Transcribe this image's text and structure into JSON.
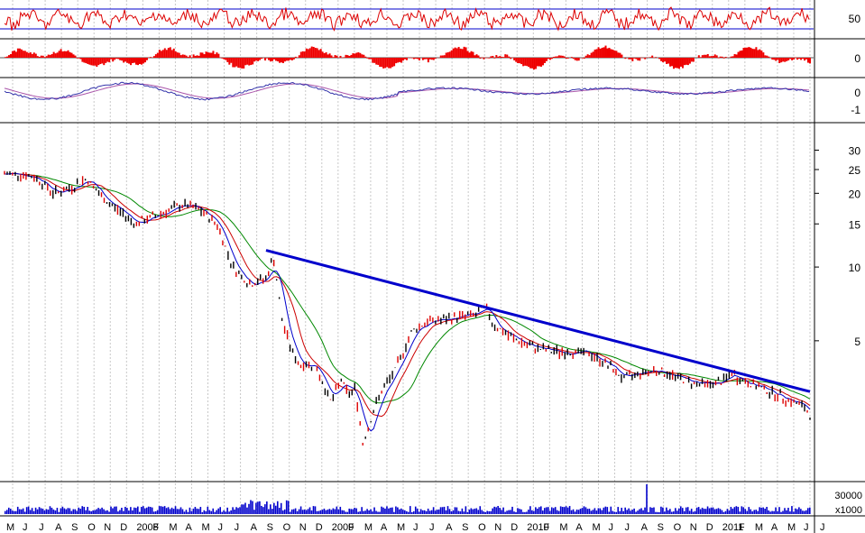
{
  "chart_data": [
    {
      "type": "line",
      "panel": "oscillator",
      "title": "",
      "yticks": [
        50
      ],
      "reference_levels": [
        70,
        30
      ],
      "ylim": [
        0,
        100
      ],
      "colors": {
        "line": "#dd0000",
        "reference": "#0000cc"
      }
    },
    {
      "type": "bar",
      "panel": "histogram",
      "title": "",
      "yticks": [
        0
      ],
      "colors": {
        "bars": "#ee0000"
      }
    },
    {
      "type": "line",
      "panel": "momentum",
      "title": "",
      "yticks": [
        0,
        -1
      ],
      "colors": {
        "line": "#3333aa",
        "signal": "#aa55aa"
      }
    },
    {
      "type": "line",
      "panel": "price",
      "title": "",
      "log_scale": true,
      "ylim": [
        1.4,
        36
      ],
      "yticks": [
        30,
        25,
        20,
        15,
        10,
        5
      ],
      "grid": "vertical dotted",
      "series": [
        {
          "name": "",
          "role": "price",
          "color": "#000000",
          "x": [
            "2007-05-01",
            "2007-06-01",
            "2007-07-01",
            "2007-08-01",
            "2007-09-01",
            "2007-10-01",
            "2007-11-01",
            "2007-12-01",
            "2008-01-01",
            "2008-02-01",
            "2008-03-01",
            "2008-04-01",
            "2008-05-01",
            "2008-06-01",
            "2008-07-01",
            "2008-08-01",
            "2008-09-01",
            "2008-09-15",
            "2008-10-01",
            "2008-10-20",
            "2008-11-01",
            "2008-12-01",
            "2009-01-01",
            "2009-01-20",
            "2009-02-01",
            "2009-02-15",
            "2009-03-01",
            "2009-03-10",
            "2009-04-01",
            "2009-05-01",
            "2009-06-01",
            "2009-07-01",
            "2009-08-01",
            "2009-09-01",
            "2009-10-01",
            "2009-10-15",
            "2009-11-01",
            "2009-12-01",
            "2010-01-01",
            "2010-02-01",
            "2010-03-01",
            "2010-04-01",
            "2010-05-01",
            "2010-06-01",
            "2010-07-01",
            "2010-08-01",
            "2010-09-01",
            "2010-10-01",
            "2010-11-01",
            "2010-12-01",
            "2011-01-01",
            "2011-01-20",
            "2011-02-01",
            "2011-03-01",
            "2011-04-01",
            "2011-05-01",
            "2011-06-01",
            "2011-06-15"
          ],
          "values": [
            24,
            24,
            23,
            20,
            21,
            23,
            19,
            17,
            15,
            16,
            17,
            18,
            17,
            15,
            10,
            8.5,
            9,
            11,
            6,
            4.5,
            4,
            4,
            2.8,
            3.5,
            3,
            3.2,
            1.9,
            2.2,
            3,
            3.8,
            5.5,
            6,
            6.1,
            6.3,
            6.4,
            6.9,
            5.8,
            5.2,
            4.8,
            4.6,
            4.5,
            4.5,
            4.4,
            4.0,
            3.5,
            3.7,
            3.8,
            3.6,
            3.4,
            3.3,
            3.4,
            3.7,
            3.5,
            3.3,
            3.1,
            2.9,
            2.7,
            2.5
          ]
        },
        {
          "name": "",
          "role": "moving-average-short",
          "color": "#0000cc"
        },
        {
          "name": "",
          "role": "moving-average-medium",
          "color": "#cc0000"
        },
        {
          "name": "",
          "role": "moving-average-long",
          "color": "#008800"
        },
        {
          "name": "",
          "role": "trendline",
          "color": "#0000cc",
          "x": [
            "2008-09-01",
            "2011-06-15"
          ],
          "values": [
            11.7,
            3.1
          ]
        }
      ]
    },
    {
      "type": "bar",
      "panel": "volume",
      "title": "",
      "yticks": [
        "30000"
      ],
      "unit_label": "x1000",
      "colors": {
        "bars": "#0000cc"
      }
    }
  ],
  "x_axis": {
    "labels": [
      "M",
      "J",
      "J",
      "A",
      "S",
      "O",
      "N",
      "D",
      "2008",
      "F",
      "M",
      "A",
      "M",
      "J",
      "J",
      "A",
      "S",
      "O",
      "N",
      "D",
      "2009",
      "F",
      "M",
      "A",
      "M",
      "J",
      "J",
      "A",
      "S",
      "O",
      "N",
      "D",
      "2010",
      "F",
      "M",
      "A",
      "M",
      "J",
      "J",
      "A",
      "S",
      "O",
      "N",
      "D",
      "2011",
      "F",
      "M",
      "A",
      "M",
      "J",
      "J"
    ]
  }
}
